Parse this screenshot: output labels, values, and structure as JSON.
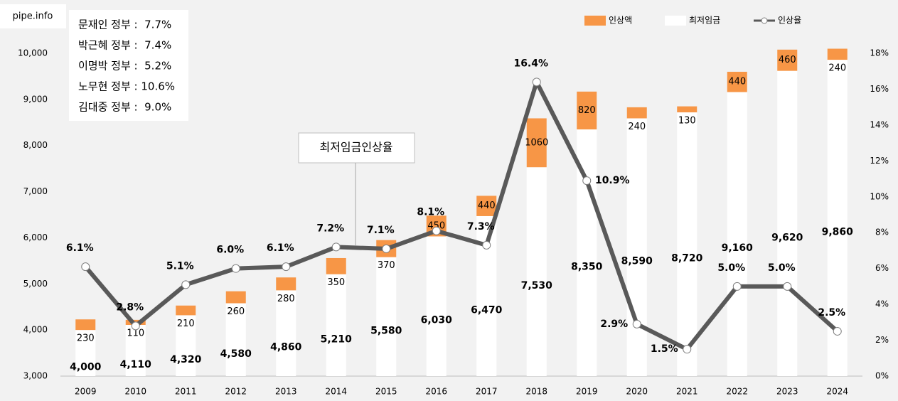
{
  "source": "pipe.info",
  "chart_data": {
    "type": "bar",
    "stacked": true,
    "categories": [
      "2009",
      "2010",
      "2011",
      "2012",
      "2013",
      "2014",
      "2015",
      "2016",
      "2017",
      "2018",
      "2019",
      "2020",
      "2021",
      "2022",
      "2023",
      "2024"
    ],
    "series": [
      {
        "name": "최저임금",
        "color": "#ffffff",
        "values": [
          4000,
          4110,
          4320,
          4580,
          4860,
          5210,
          5580,
          6030,
          6470,
          7530,
          8350,
          8590,
          8720,
          9160,
          9620,
          9860
        ],
        "value_labels": [
          "4,000",
          "4,110",
          "4,320",
          "4,580",
          "4,860",
          "5,210",
          "5,580",
          "6,030",
          "6,470",
          "7,530",
          "8,350",
          "8,590",
          "8,720",
          "9,160",
          "9,620",
          "9,860"
        ]
      },
      {
        "name": "인상액",
        "color": "#f79646",
        "values": [
          230,
          110,
          210,
          260,
          280,
          350,
          370,
          450,
          440,
          1060,
          820,
          240,
          130,
          440,
          460,
          240
        ]
      },
      {
        "name": "인상율",
        "color": "#595959",
        "type": "line",
        "axis": "y2",
        "values": [
          6.1,
          2.8,
          5.1,
          6.0,
          6.1,
          7.2,
          7.1,
          8.1,
          7.3,
          16.4,
          10.9,
          2.9,
          1.5,
          5.0,
          5.0,
          2.5
        ],
        "value_labels": [
          "6.1%",
          "2.8%",
          "5.1%",
          "6.0%",
          "6.1%",
          "7.2%",
          "7.1%",
          "8.1%",
          "7.3%",
          "16.4%",
          "10.9%",
          "2.9%",
          "1.5%",
          "5.0%",
          "5.0%",
          "2.5%"
        ]
      }
    ],
    "ylim": [
      3000,
      10000
    ],
    "yticks": [
      {
        "value": 3000,
        "label": "3,000"
      },
      {
        "value": 4000,
        "label": "4,000"
      },
      {
        "value": 5000,
        "label": "5,000"
      },
      {
        "value": 6000,
        "label": "6,000"
      },
      {
        "value": 7000,
        "label": "7,000"
      },
      {
        "value": 8000,
        "label": "8,000"
      },
      {
        "value": 9000,
        "label": "9,000"
      },
      {
        "value": 10000,
        "label": "10,000"
      }
    ],
    "y2lim": [
      0,
      18
    ],
    "y2ticks": [
      {
        "value": 0,
        "label": "0%"
      },
      {
        "value": 2,
        "label": "2%"
      },
      {
        "value": 4,
        "label": "4%"
      },
      {
        "value": 6,
        "label": "6%"
      },
      {
        "value": 8,
        "label": "8%"
      },
      {
        "value": 10,
        "label": "10%"
      },
      {
        "value": 12,
        "label": "12%"
      },
      {
        "value": 14,
        "label": "14%"
      },
      {
        "value": 16,
        "label": "16%"
      },
      {
        "value": 18,
        "label": "18%"
      }
    ],
    "annotations": [
      "문재인 정부 :  7.7%",
      "박근혜 정부 :  7.4%",
      "이명박 정부 :  5.2%",
      "노무현 정부 : 10.6%",
      "김대중 정부 :  9.0%"
    ],
    "callout": "최저임금인상율"
  }
}
